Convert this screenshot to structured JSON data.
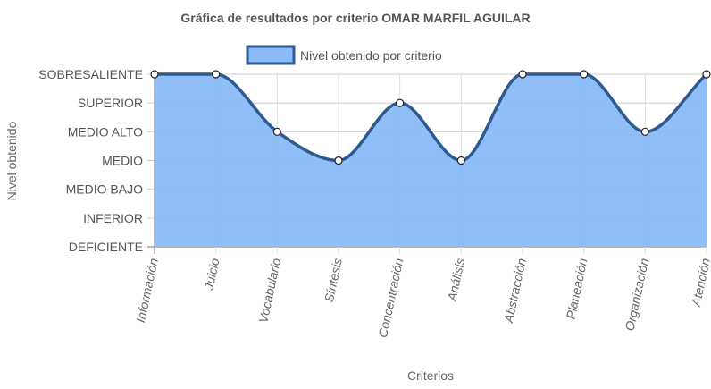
{
  "chart_data": {
    "type": "area",
    "title": "Gráfica de resultados por criterio OMAR MARFIL AGUILAR",
    "xlabel": "Criterios",
    "ylabel": "Nivel obtenido",
    "y_categories": [
      "DEFICIENTE",
      "INFERIOR",
      "MEDIO BAJO",
      "MEDIO",
      "MEDIO ALTO",
      "SUPERIOR",
      "SOBRESALIENTE"
    ],
    "categories": [
      "Información",
      "Juicio",
      "Vocabulario",
      "Síntesis",
      "Concentración",
      "Análisis",
      "Abstracción",
      "Planeación",
      "Organización",
      "Atención"
    ],
    "series": [
      {
        "name": "Nivel obtenido por criterio",
        "values": [
          "SOBRESALIENTE",
          "SOBRESALIENTE",
          "MEDIO ALTO",
          "MEDIO",
          "SUPERIOR",
          "MEDIO",
          "SOBRESALIENTE",
          "SOBRESALIENTE",
          "MEDIO ALTO",
          "SOBRESALIENTE"
        ],
        "fill_color": "#8abbf8",
        "line_color": "#2f5a8f"
      }
    ],
    "grid": true,
    "legend_position": "top"
  }
}
